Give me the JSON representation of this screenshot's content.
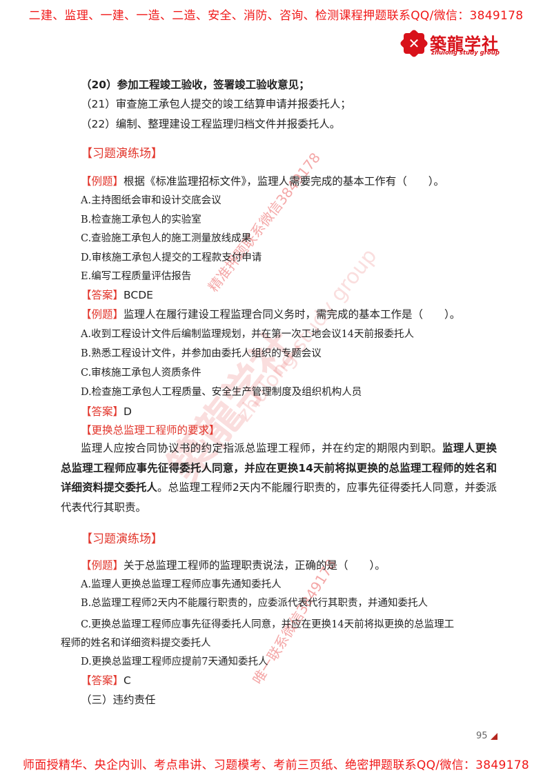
{
  "header_banner": "二建、监理、一建、一造、二造、安全、消防、咨询、检测课程押题联系QQ/微信：3849178",
  "logo": {
    "name_cn": "築龍学社",
    "name_en": "zhulong study group"
  },
  "duties_list": [
    {
      "text": "（20）参加工程竣工验收，签署竣工验收意见；",
      "bold": true
    },
    {
      "text": "（21）审查施工承包人提交的竣工结算申请并报委托人；",
      "bold": false
    },
    {
      "text": "（22）编制、整理建设工程监理归档文件并报委托人。",
      "bold": false
    }
  ],
  "practice_heading_1": "【习题演练场】",
  "example_label": "【例题】",
  "answer_label": "【答案】",
  "q1": {
    "stem": "根据《标准监理招标文件》，监理人需要完成的基本工作有（　　）。",
    "options": [
      "A.主持图纸会审和设计交底会议",
      "B.检查施工承包人的实验室",
      "C.查验施工承包人的施工测量放线成果",
      "D.审核施工承包人提交的工程款支付申请",
      "E.编写工程质量评估报告"
    ],
    "answer": "BCDE"
  },
  "q2": {
    "stem": "监理人在履行建设工程监理合同义务时，需完成的基本工作是（　　）。",
    "options": [
      "A.收到工程设计文件后编制监理规划，并在第一次工地会议14天前报委托人",
      "B.熟悉工程设计文件，并参加由委托人组织的专题会议",
      "C.审核施工承包人资质条件",
      "D.检查施工承包人工程质量、安全生产管理制度及组织机构人员"
    ],
    "answer": "D"
  },
  "replace_heading": "【更换总监理工程师的要求】",
  "replace_paragraph": {
    "part1": "监理人应按合同协议书的约定指派总监理工程师，并在约定的期限内到职。",
    "part2_bold": "监理人更换总监理工程师应事先征得委托人同意，并应在更换14天前将拟更换的总监理工程师的姓名和详细资料提交委托人",
    "part3": "。总监理工程师2天内不能履行职责的，应事先征得委托人同意，并委派代表代行其职责。"
  },
  "practice_heading_2": "【习题演练场】",
  "q3": {
    "stem": "关于总监理工程师的监理职责说法，正确的是（　　）。",
    "options": [
      "A.监理人更换总监理工程师应事先通知委托人",
      "B.总监理工程师2天内不能履行职责的，应委派代表代行其职责，并通知委托人",
      "C.更换总监理工程师应事先征得委托人同意，并应在更换14天前将拟更换的总监理工",
      "程师的姓名和详细资料提交委托人",
      "D.更换总监理工程师应提前7天通知委托人"
    ],
    "answer": "C"
  },
  "next_section": "（三）违约责任",
  "page_number": "95",
  "footer_banner": "师面授精华、央企内训、考点串讲、习题模考、考前三页纸、绝密押题联系QQ/微信：3849178",
  "watermarks": {
    "top": "精准押题联系微信3849178",
    "bottom": "唯一联系微信3849178",
    "center_cn": "築龍学社",
    "center_en": "zhulong study group"
  },
  "colors": {
    "banner": "#f01818",
    "label": "#e2352b",
    "logo": "#d8121a"
  }
}
